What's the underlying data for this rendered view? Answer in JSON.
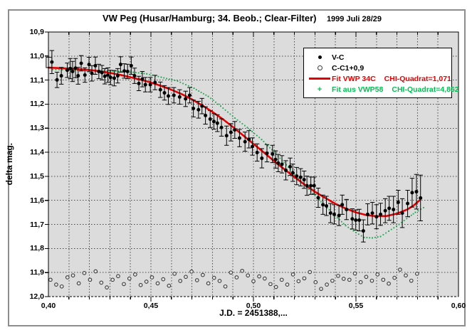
{
  "colors": {
    "plot_background": "#dcdcdc",
    "grid": "#4a4a4a",
    "frame_border": "#8d8d8d",
    "axis_line": "#000000",
    "points_black": "#000000",
    "circles_gray": "#3c3c3c",
    "fit_red": "#e60000",
    "fit_green": "#1ea750",
    "legend_green_text": "#00c050"
  },
  "chart_data": {
    "type": "scatter",
    "title": "VW Peg (Husar/Hamburg; 34. Beob.; Clear-Filter)",
    "date_annotation": "1999 Juli 28/29",
    "xlabel": "J.D. = 2451388,...",
    "ylabel": "delta mag.",
    "xlim": [
      0.4,
      0.6
    ],
    "ylim": [
      10.9,
      12.0
    ],
    "y_axis_note": "magnitude axis, faint (12,0) at bottom",
    "x_tick_values": [
      0.4,
      0.45,
      0.5,
      0.55,
      0.6
    ],
    "x_tick_labels": [
      "0,40",
      "0,45",
      "0,50",
      "0,55",
      "0,60"
    ],
    "x_minor_tick_step": 0.01,
    "y_tick_values": [
      10.9,
      11.0,
      11.1,
      11.2,
      11.3,
      11.4,
      11.5,
      11.6,
      11.7,
      11.8,
      11.9,
      12.0
    ],
    "y_tick_labels": [
      "10,9",
      "11,0",
      "11,1",
      "11,2",
      "11,3",
      "11,4",
      "11,5",
      "11,6",
      "11,7",
      "11,8",
      "11,9",
      "12,0"
    ],
    "grid": {
      "vertical_step": 0.01,
      "horizontal_step": 0.1,
      "style": "dashed",
      "on": true
    },
    "legend": {
      "position": "top-right",
      "entries": [
        {
          "marker": "filled-dot",
          "label": "V-C",
          "chi": "",
          "color": "#000000"
        },
        {
          "marker": "open-circle",
          "label": "C-C1+0,9",
          "chi": "",
          "color": "#000000"
        },
        {
          "marker": "red-line",
          "label": "Fit VWP 34C",
          "chi": "CHI-Quadrat=1,071",
          "color": "#e60000"
        },
        {
          "marker": "green-plus",
          "label": "Fit aus VWP58",
          "chi": "CHI-Quadrat=4,862",
          "color": "#00c050"
        }
      ]
    },
    "clipped_point_marker": {
      "jd": 0.4003,
      "mag_top": 11.005,
      "mag_bottom": 11.048
    },
    "series": [
      {
        "name": "V-C",
        "style": "points_with_errorbars",
        "color": "#000000",
        "points_jd_mag_err": [
          [
            0.4017,
            11.025,
            0.048
          ],
          [
            0.4042,
            11.099,
            0.032
          ],
          [
            0.4063,
            11.082,
            0.035
          ],
          [
            0.4092,
            11.059,
            0.03
          ],
          [
            0.4107,
            11.052,
            0.042
          ],
          [
            0.4118,
            11.064,
            0.042
          ],
          [
            0.4132,
            11.05,
            0.04
          ],
          [
            0.4145,
            11.082,
            0.035
          ],
          [
            0.416,
            11.03,
            0.032
          ],
          [
            0.4178,
            11.079,
            0.03
          ],
          [
            0.4198,
            11.035,
            0.03
          ],
          [
            0.4212,
            11.072,
            0.032
          ],
          [
            0.4229,
            11.04,
            0.036
          ],
          [
            0.4246,
            11.064,
            0.03
          ],
          [
            0.4261,
            11.069,
            0.03
          ],
          [
            0.4275,
            11.084,
            0.032
          ],
          [
            0.429,
            11.079,
            0.03
          ],
          [
            0.4303,
            11.089,
            0.03
          ],
          [
            0.4321,
            11.092,
            0.032
          ],
          [
            0.4338,
            11.082,
            0.03
          ],
          [
            0.4352,
            11.035,
            0.032
          ],
          [
            0.437,
            11.062,
            0.03
          ],
          [
            0.4386,
            11.064,
            0.03
          ],
          [
            0.4404,
            11.04,
            0.036
          ],
          [
            0.442,
            11.082,
            0.032
          ],
          [
            0.4441,
            11.114,
            0.03
          ],
          [
            0.4458,
            11.096,
            0.032
          ],
          [
            0.4473,
            11.119,
            0.03
          ],
          [
            0.4497,
            11.119,
            0.03
          ],
          [
            0.452,
            11.11,
            0.03
          ],
          [
            0.4546,
            11.14,
            0.032
          ],
          [
            0.4566,
            11.153,
            0.03
          ],
          [
            0.4585,
            11.166,
            0.035
          ],
          [
            0.4612,
            11.163,
            0.032
          ],
          [
            0.464,
            11.17,
            0.03
          ],
          [
            0.4669,
            11.178,
            0.032
          ],
          [
            0.4689,
            11.163,
            0.032
          ],
          [
            0.4707,
            11.218,
            0.035
          ],
          [
            0.4732,
            11.223,
            0.035
          ],
          [
            0.4749,
            11.208,
            0.032
          ],
          [
            0.4766,
            11.247,
            0.036
          ],
          [
            0.4789,
            11.262,
            0.035
          ],
          [
            0.4807,
            11.272,
            0.032
          ],
          [
            0.4824,
            11.279,
            0.035
          ],
          [
            0.4844,
            11.297,
            0.036
          ],
          [
            0.4869,
            11.331,
            0.04
          ],
          [
            0.489,
            11.317,
            0.036
          ],
          [
            0.4909,
            11.307,
            0.035
          ],
          [
            0.4932,
            11.341,
            0.036
          ],
          [
            0.4959,
            11.356,
            0.04
          ],
          [
            0.4978,
            11.346,
            0.036
          ],
          [
            0.4995,
            11.376,
            0.036
          ],
          [
            0.5018,
            11.401,
            0.036
          ],
          [
            0.5041,
            11.425,
            0.04
          ],
          [
            0.5066,
            11.404,
            0.036
          ],
          [
            0.5093,
            11.407,
            0.036
          ],
          [
            0.5108,
            11.43,
            0.036
          ],
          [
            0.5121,
            11.445,
            0.036
          ],
          [
            0.5139,
            11.45,
            0.036
          ],
          [
            0.5158,
            11.475,
            0.04
          ],
          [
            0.5179,
            11.46,
            0.036
          ],
          [
            0.5192,
            11.485,
            0.036
          ],
          [
            0.5211,
            11.499,
            0.036
          ],
          [
            0.523,
            11.504,
            0.036
          ],
          [
            0.5247,
            11.514,
            0.036
          ],
          [
            0.5261,
            11.539,
            0.04
          ],
          [
            0.528,
            11.539,
            0.036
          ],
          [
            0.5296,
            11.539,
            0.036
          ],
          [
            0.5316,
            11.589,
            0.04
          ],
          [
            0.5339,
            11.618,
            0.04
          ],
          [
            0.5356,
            11.623,
            0.04
          ],
          [
            0.5376,
            11.653,
            0.04
          ],
          [
            0.5394,
            11.658,
            0.04
          ],
          [
            0.5417,
            11.663,
            0.042
          ],
          [
            0.5433,
            11.618,
            0.04
          ],
          [
            0.5454,
            11.638,
            0.042
          ],
          [
            0.5482,
            11.677,
            0.042
          ],
          [
            0.5499,
            11.682,
            0.042
          ],
          [
            0.5516,
            11.682,
            0.045
          ],
          [
            0.5536,
            11.727,
            0.046
          ],
          [
            0.5557,
            11.658,
            0.044
          ],
          [
            0.558,
            11.653,
            0.045
          ],
          [
            0.56,
            11.668,
            0.05
          ],
          [
            0.562,
            11.658,
            0.046
          ],
          [
            0.5643,
            11.643,
            0.05
          ],
          [
            0.5662,
            11.633,
            0.05
          ],
          [
            0.5683,
            11.638,
            0.055
          ],
          [
            0.5706,
            11.608,
            0.05
          ],
          [
            0.5726,
            11.653,
            0.06
          ],
          [
            0.5752,
            11.613,
            0.055
          ],
          [
            0.5774,
            11.568,
            0.06
          ],
          [
            0.5795,
            11.564,
            0.072
          ],
          [
            0.5815,
            11.59,
            0.095
          ]
        ]
      },
      {
        "name": "C-C1+0,9",
        "style": "open_circles",
        "color": "#3c3c3c",
        "points_jd_mag": [
          [
            0.401,
            11.93
          ],
          [
            0.4038,
            11.95
          ],
          [
            0.4065,
            11.958
          ],
          [
            0.4093,
            11.92
          ],
          [
            0.412,
            11.912
          ],
          [
            0.4148,
            11.945
          ],
          [
            0.4175,
            11.902
          ],
          [
            0.4203,
            11.93
          ],
          [
            0.423,
            11.895
          ],
          [
            0.4258,
            11.942
          ],
          [
            0.4285,
            11.962
          ],
          [
            0.4313,
            11.93
          ],
          [
            0.434,
            11.915
          ],
          [
            0.4368,
            11.948
          ],
          [
            0.4395,
            11.925
          ],
          [
            0.4423,
            11.908
          ],
          [
            0.445,
            11.952
          ],
          [
            0.4478,
            11.938
          ],
          [
            0.4505,
            11.92
          ],
          [
            0.4533,
            11.945
          ],
          [
            0.456,
            11.928
          ],
          [
            0.4588,
            11.955
          ],
          [
            0.4615,
            11.905
          ],
          [
            0.4643,
            11.935
          ],
          [
            0.467,
            11.918
          ],
          [
            0.4698,
            11.896
          ],
          [
            0.4725,
            11.932
          ],
          [
            0.4753,
            11.91
          ],
          [
            0.478,
            11.945
          ],
          [
            0.4808,
            11.922
          ],
          [
            0.4835,
            11.935
          ],
          [
            0.4863,
            11.958
          ],
          [
            0.489,
            11.9
          ],
          [
            0.4918,
            11.92
          ],
          [
            0.4945,
            11.893
          ],
          [
            0.4973,
            11.912
          ],
          [
            0.5,
            11.936
          ],
          [
            0.5028,
            11.916
          ],
          [
            0.5055,
            11.925
          ],
          [
            0.5083,
            11.948
          ],
          [
            0.511,
            11.96
          ],
          [
            0.5138,
            11.93
          ],
          [
            0.5165,
            11.95
          ],
          [
            0.5193,
            11.908
          ],
          [
            0.522,
            11.936
          ],
          [
            0.5248,
            11.924
          ],
          [
            0.5275,
            11.898
          ],
          [
            0.5303,
            11.94
          ],
          [
            0.533,
            11.968
          ],
          [
            0.5358,
            11.95
          ],
          [
            0.5385,
            11.934
          ],
          [
            0.5413,
            11.914
          ],
          [
            0.544,
            11.926
          ],
          [
            0.5468,
            11.93
          ],
          [
            0.5495,
            11.904
          ],
          [
            0.5523,
            11.94
          ],
          [
            0.555,
            11.918
          ],
          [
            0.5578,
            11.934
          ],
          [
            0.5605,
            11.908
          ],
          [
            0.5633,
            11.93
          ],
          [
            0.566,
            11.946
          ],
          [
            0.5688,
            11.922
          ],
          [
            0.5715,
            11.888
          ],
          [
            0.5743,
            11.912
          ],
          [
            0.577,
            11.934
          ],
          [
            0.5798,
            11.905
          ]
        ]
      }
    ],
    "fits": [
      {
        "name": "Fit VWP 34C",
        "chi_quadrat": "1,071",
        "style": "solid_line",
        "color": "#e60000",
        "points_jd_mag": [
          [
            0.4,
            11.048
          ],
          [
            0.405,
            11.05
          ],
          [
            0.41,
            11.052
          ],
          [
            0.415,
            11.055
          ],
          [
            0.42,
            11.058
          ],
          [
            0.425,
            11.063
          ],
          [
            0.43,
            11.07
          ],
          [
            0.435,
            11.078
          ],
          [
            0.44,
            11.088
          ],
          [
            0.445,
            11.098
          ],
          [
            0.45,
            11.11
          ],
          [
            0.455,
            11.124
          ],
          [
            0.46,
            11.14
          ],
          [
            0.465,
            11.158
          ],
          [
            0.47,
            11.18
          ],
          [
            0.475,
            11.205
          ],
          [
            0.48,
            11.232
          ],
          [
            0.485,
            11.262
          ],
          [
            0.49,
            11.295
          ],
          [
            0.495,
            11.33
          ],
          [
            0.5,
            11.365
          ],
          [
            0.505,
            11.4
          ],
          [
            0.51,
            11.436
          ],
          [
            0.515,
            11.47
          ],
          [
            0.52,
            11.503
          ],
          [
            0.525,
            11.535
          ],
          [
            0.53,
            11.564
          ],
          [
            0.535,
            11.59
          ],
          [
            0.54,
            11.614
          ],
          [
            0.545,
            11.634
          ],
          [
            0.55,
            11.65
          ],
          [
            0.555,
            11.661
          ],
          [
            0.56,
            11.666
          ],
          [
            0.565,
            11.665
          ],
          [
            0.57,
            11.655
          ],
          [
            0.575,
            11.638
          ],
          [
            0.578,
            11.622
          ],
          [
            0.581,
            11.6
          ]
        ]
      },
      {
        "name": "Fit aus VWP58",
        "chi_quadrat": "4,862",
        "style": "dotted",
        "color": "#1ea750",
        "points_jd_mag": [
          [
            0.402,
            11.056
          ],
          [
            0.41,
            11.058
          ],
          [
            0.42,
            11.06
          ],
          [
            0.43,
            11.062
          ],
          [
            0.44,
            11.066
          ],
          [
            0.448,
            11.074
          ],
          [
            0.455,
            11.088
          ],
          [
            0.463,
            11.104
          ],
          [
            0.471,
            11.134
          ],
          [
            0.478,
            11.168
          ],
          [
            0.484,
            11.208
          ],
          [
            0.491,
            11.258
          ],
          [
            0.497,
            11.297
          ],
          [
            0.504,
            11.347
          ],
          [
            0.51,
            11.398
          ],
          [
            0.516,
            11.452
          ],
          [
            0.522,
            11.51
          ],
          [
            0.53,
            11.58
          ],
          [
            0.538,
            11.648
          ],
          [
            0.545,
            11.705
          ],
          [
            0.55,
            11.734
          ],
          [
            0.554,
            11.754
          ],
          [
            0.558,
            11.756
          ],
          [
            0.562,
            11.75
          ],
          [
            0.566,
            11.728
          ],
          [
            0.571,
            11.7
          ],
          [
            0.576,
            11.668
          ],
          [
            0.579,
            11.65
          ],
          [
            0.583,
            11.63
          ]
        ]
      }
    ]
  }
}
